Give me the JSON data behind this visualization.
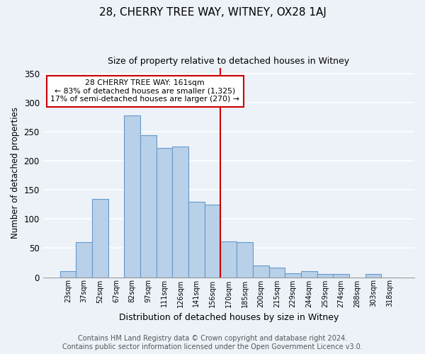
{
  "title": "28, CHERRY TREE WAY, WITNEY, OX28 1AJ",
  "subtitle": "Size of property relative to detached houses in Witney",
  "xlabel": "Distribution of detached houses by size in Witney",
  "ylabel": "Number of detached properties",
  "bar_labels": [
    "23sqm",
    "37sqm",
    "52sqm",
    "67sqm",
    "82sqm",
    "97sqm",
    "111sqm",
    "126sqm",
    "141sqm",
    "156sqm",
    "170sqm",
    "185sqm",
    "200sqm",
    "215sqm",
    "229sqm",
    "244sqm",
    "259sqm",
    "274sqm",
    "288sqm",
    "303sqm",
    "318sqm"
  ],
  "bar_values": [
    10,
    60,
    135,
    0,
    278,
    244,
    222,
    225,
    130,
    125,
    62,
    60,
    20,
    17,
    7,
    10,
    5,
    5,
    0,
    5,
    0
  ],
  "bar_color": "#b8d0e8",
  "bar_edge_color": "#6699cc",
  "vline_color": "#cc0000",
  "vline_x_index": 9.5,
  "annotation_text": "28 CHERRY TREE WAY: 161sqm\n← 83% of detached houses are smaller (1,325)\n17% of semi-detached houses are larger (270) →",
  "annotation_box_color": "#ffffff",
  "annotation_box_edge": "#cc0000",
  "ylim": [
    0,
    360
  ],
  "yticks": [
    0,
    50,
    100,
    150,
    200,
    250,
    300,
    350
  ],
  "footer_line1": "Contains HM Land Registry data © Crown copyright and database right 2024.",
  "footer_line2": "Contains public sector information licensed under the Open Government Licence v3.0.",
  "bg_color": "#edf2f9",
  "grid_color": "#ffffff",
  "title_fontsize": 11,
  "subtitle_fontsize": 9,
  "footer_fontsize": 7
}
